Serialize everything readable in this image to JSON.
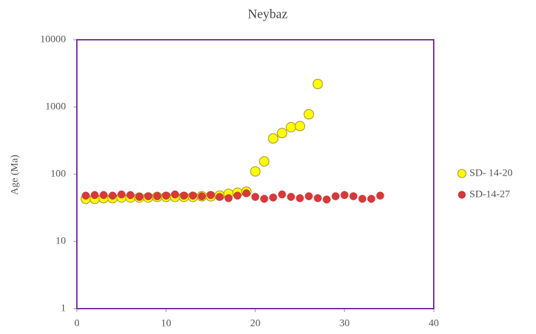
{
  "chart_data": {
    "type": "scatter",
    "title": "Neybaz",
    "ylabel": "Age (Ma)",
    "xlim": [
      0,
      40
    ],
    "xticks": [
      0,
      10,
      20,
      30,
      40
    ],
    "ylim": [
      1,
      10000
    ],
    "yticks": [
      1,
      10,
      100,
      1000,
      10000
    ],
    "log_y": true,
    "legend": "right",
    "border_color": "#7030a0",
    "series": [
      {
        "name": "SD- 14-20",
        "color": "#ffff00",
        "x": [
          1,
          2,
          3,
          4,
          5,
          6,
          7,
          8,
          9,
          10,
          11,
          12,
          13,
          14,
          15,
          16,
          17,
          18,
          19,
          20,
          21,
          22,
          23,
          24,
          25,
          26,
          27
        ],
        "values": [
          43,
          43,
          44,
          44,
          45,
          45,
          45,
          45,
          46,
          46,
          46,
          46,
          46,
          47,
          47,
          48,
          51,
          53,
          55,
          110,
          155,
          340,
          410,
          500,
          520,
          780,
          2200
        ]
      },
      {
        "name": "SD-14-27",
        "color": "#d9383a",
        "x": [
          1,
          2,
          3,
          4,
          5,
          6,
          7,
          8,
          9,
          10,
          11,
          12,
          13,
          14,
          15,
          16,
          17,
          18,
          19,
          20,
          21,
          22,
          23,
          24,
          25,
          26,
          27,
          28,
          29,
          30,
          31,
          32,
          33,
          34
        ],
        "values": [
          48,
          49,
          49,
          48,
          50,
          49,
          46,
          47,
          47,
          48,
          50,
          48,
          48,
          47,
          49,
          46,
          44,
          48,
          52,
          46,
          43,
          45,
          50,
          46,
          44,
          47,
          44,
          42,
          47,
          49,
          47,
          43,
          43,
          48
        ]
      }
    ]
  }
}
